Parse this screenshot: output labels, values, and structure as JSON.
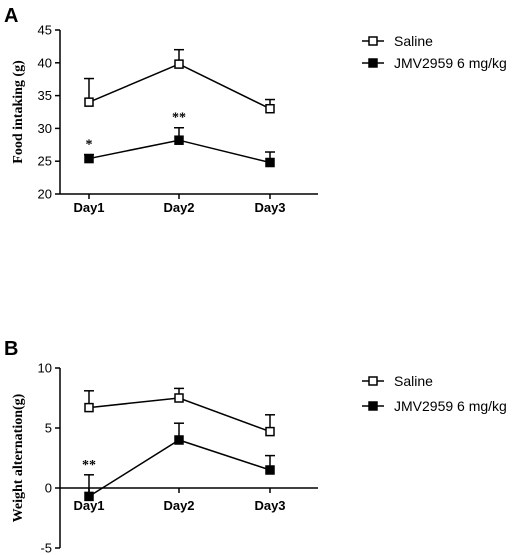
{
  "chart_data": [
    {
      "panel": "A",
      "type": "line",
      "ylabel": "Food intaking (g)",
      "xlabel": "",
      "categories": [
        "Day1",
        "Day2",
        "Day3"
      ],
      "ylim": [
        20,
        45
      ],
      "yticks": [
        20,
        25,
        30,
        35,
        40,
        45
      ],
      "legend_position": "top-right",
      "series": [
        {
          "name": "Saline",
          "marker": "open-square",
          "values": [
            34.0,
            39.8,
            33.0
          ],
          "errors": [
            3.6,
            2.2,
            1.4
          ]
        },
        {
          "name": "JMV2959 6 mg/kg",
          "marker": "filled-square",
          "values": [
            25.4,
            28.2,
            24.8
          ],
          "errors": [
            0.6,
            1.9,
            1.6
          ]
        }
      ],
      "annotations": [
        {
          "category": "Day1",
          "text": "*"
        },
        {
          "category": "Day2",
          "text": "**"
        }
      ]
    },
    {
      "panel": "B",
      "type": "line",
      "ylabel": "Weight alternation(g)",
      "xlabel": "",
      "categories": [
        "Day1",
        "Day2",
        "Day3"
      ],
      "ylim": [
        -5,
        10
      ],
      "yticks": [
        -5,
        0,
        5,
        10
      ],
      "legend_position": "top-right",
      "series": [
        {
          "name": "Saline",
          "marker": "open-square",
          "values": [
            6.7,
            7.5,
            4.7
          ],
          "errors": [
            1.4,
            0.8,
            1.4
          ]
        },
        {
          "name": "JMV2959 6 mg/kg",
          "marker": "filled-square",
          "values": [
            -0.7,
            4.0,
            1.5
          ],
          "errors": [
            1.8,
            1.4,
            1.2
          ]
        }
      ],
      "annotations": [
        {
          "category": "Day1",
          "text": "**"
        }
      ]
    }
  ]
}
